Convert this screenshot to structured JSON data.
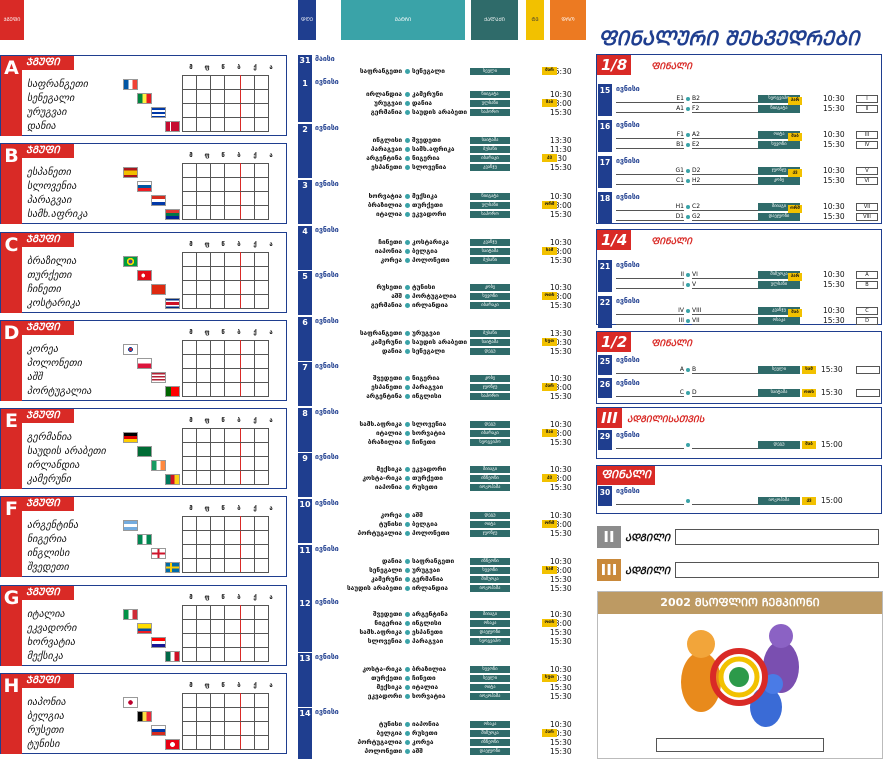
{
  "header": {
    "group_col": "ᲯᲒᲣᲤᲘ",
    "day_col": "ᲓᲦᲔ",
    "match_col": "ᲛᲐᲢᲩᲘ",
    "city_col": "ᲥᲐᲚᲐᲥᲘ",
    "tv_col": "ᲢᲕ",
    "time_col": "ᲓᲠᲝ"
  },
  "group_cols": [
    "მ",
    "ფ",
    "წ",
    "ბ",
    "ქ",
    "ა"
  ],
  "group_word": "ᲯᲒᲣᲤᲘ",
  "groups": [
    {
      "letter": "A",
      "teams": [
        "საფრანგეთი",
        "სენეგალი",
        "ურუგვაი",
        "დანია"
      ]
    },
    {
      "letter": "B",
      "teams": [
        "ესპანეთი",
        "სლოვენია",
        "პარაგვაი",
        "სამხ.აფრიკა"
      ]
    },
    {
      "letter": "C",
      "teams": [
        "ბრაზილია",
        "თურქეთი",
        "ჩინეთი",
        "კოსტარიკა"
      ]
    },
    {
      "letter": "D",
      "teams": [
        "კორეა",
        "პოლონეთი",
        "აშშ",
        "პორტუგალია"
      ]
    },
    {
      "letter": "E",
      "teams": [
        "გერმანია",
        "საუდის არაბეთი",
        "ირლანდია",
        "კამერუნი"
      ]
    },
    {
      "letter": "F",
      "teams": [
        "არგენტინა",
        "ნიგერია",
        "ინგლისი",
        "შვედეთი"
      ]
    },
    {
      "letter": "G",
      "teams": [
        "იტალია",
        "ეკვადორი",
        "ხორვატია",
        "მექსიკა"
      ]
    },
    {
      "letter": "H",
      "teams": [
        "იაპონია",
        "ბელგია",
        "რუსეთი",
        "ტუნისი"
      ]
    }
  ],
  "days": [
    {
      "num": "31",
      "month": "მაისი",
      "matches": [
        {
          "a": "საფრანგეთი",
          "b": "სენეგალი",
          "city": "სეული",
          "time": "15:30",
          "tv": "მარ"
        }
      ]
    },
    {
      "num": "1",
      "month": "ივნისი",
      "matches": [
        {
          "a": "ირლანდია",
          "b": "კამერუნი",
          "city": "ნიიგატა",
          "time": "10:30"
        },
        {
          "a": "ურუგვაი",
          "b": "დანია",
          "city": "ულსანი",
          "time": "13:00",
          "tv": "შაბ"
        },
        {
          "a": "გერმანია",
          "b": "საუდის არაბეთი",
          "city": "საპორო",
          "time": "15:30"
        }
      ]
    },
    {
      "num": "2",
      "month": "ივნისი",
      "matches": [
        {
          "a": "ინგლისი",
          "b": "შვედეთი",
          "city": "საიტამა",
          "time": "13:30"
        },
        {
          "a": "პარაგვაი",
          "b": "სამხ.აფრიკა",
          "city": "ბუსანი",
          "time": "11:30"
        },
        {
          "a": "არგენტინა",
          "b": "ნიგერია",
          "city": "იბარაკი",
          "time": "9:30",
          "tv": "კვ"
        },
        {
          "a": "ესპანეთი",
          "b": "სლოვენია",
          "city": "კვანჯუ",
          "time": "15:30"
        }
      ]
    },
    {
      "num": "3",
      "month": "ივნისი",
      "matches": [
        {
          "a": "ხორვატია",
          "b": "მექსიკა",
          "city": "ნიიგატა",
          "time": "10:30"
        },
        {
          "a": "ბრაზილია",
          "b": "თურქეთი",
          "city": "ულსანი",
          "time": "13:00",
          "tv": "ორშ"
        },
        {
          "a": "იტალია",
          "b": "ეკვადორი",
          "city": "საპორო",
          "time": "15:30"
        }
      ]
    },
    {
      "num": "4",
      "month": "ივნისი",
      "matches": [
        {
          "a": "ჩინეთი",
          "b": "კოსტარიკა",
          "city": "კვანჯუ",
          "time": "10:30"
        },
        {
          "a": "იაპონია",
          "b": "ბელგია",
          "city": "საიტამა",
          "time": "13:00",
          "tv": "სამ"
        },
        {
          "a": "კორეა",
          "b": "პოლონეთი",
          "city": "ბუსანი",
          "time": "15:30"
        }
      ]
    },
    {
      "num": "5",
      "month": "ივნისი",
      "matches": [
        {
          "a": "რუსეთი",
          "b": "ტუნისი",
          "city": "კობე",
          "time": "10:30"
        },
        {
          "a": "აშშ",
          "b": "პორტუგალია",
          "city": "სუვონი",
          "time": "13:00",
          "tv": "ოთხ"
        },
        {
          "a": "გერმანია",
          "b": "ირლანდია",
          "city": "იბარაკი",
          "time": "15:30"
        }
      ]
    },
    {
      "num": "6",
      "month": "ივნისი",
      "matches": [
        {
          "a": "საფრანგეთი",
          "b": "ურუგვაი",
          "city": "ბუსანი",
          "time": "13:30"
        },
        {
          "a": "კამერუნი",
          "b": "საუდის არაბეთი",
          "city": "საიტამა",
          "time": "10:30",
          "tv": "ხუთ"
        },
        {
          "a": "დანია",
          "b": "სენეგალი",
          "city": "დეგუ",
          "time": "15:30"
        }
      ]
    },
    {
      "num": "7",
      "month": "ივნისი",
      "matches": [
        {
          "a": "შვედეთი",
          "b": "ნიგერია",
          "city": "კობე",
          "time": "10:30"
        },
        {
          "a": "ესპანეთი",
          "b": "პარაგვაი",
          "city": "ჯეონჯუ",
          "time": "13:00",
          "tv": "პარ"
        },
        {
          "a": "არგენტინა",
          "b": "ინგლისი",
          "city": "საპორო",
          "time": "15:30"
        }
      ]
    },
    {
      "num": "8",
      "month": "ივნისი",
      "matches": [
        {
          "a": "სამხ.აფრიკა",
          "b": "სლოვენია",
          "city": "დეგუ",
          "time": "10:30"
        },
        {
          "a": "იტალია",
          "b": "ხორვატია",
          "city": "იბარაკი",
          "time": "13:00",
          "tv": "შაბ"
        },
        {
          "a": "ბრაზილია",
          "b": "ჩინეთი",
          "city": "სეოგვიპო",
          "time": "15:30"
        }
      ]
    },
    {
      "num": "9",
      "month": "ივნისი",
      "matches": [
        {
          "a": "მექსიკა",
          "b": "ეკვადორი",
          "city": "მიიაგი",
          "time": "10:30"
        },
        {
          "a": "კოსტა-რიკა",
          "b": "თურქეთი",
          "city": "ინჩეონი",
          "time": "13:00",
          "tv": "კვ"
        },
        {
          "a": "იაპონია",
          "b": "რუსეთი",
          "city": "იოკოჰამა",
          "time": "15:30"
        }
      ]
    },
    {
      "num": "10",
      "month": "ივნისი",
      "matches": [
        {
          "a": "კორეა",
          "b": "აშშ",
          "city": "დეგუ",
          "time": "10:30"
        },
        {
          "a": "ტუნისი",
          "b": "ბელგია",
          "city": "ოიტა",
          "time": "13:00",
          "tv": "ორშ"
        },
        {
          "a": "პორტუგალია",
          "b": "პოლონეთი",
          "city": "ჯეონჯუ",
          "time": "15:30"
        }
      ]
    },
    {
      "num": "11",
      "month": "ივნისი",
      "matches": [
        {
          "a": "დანია",
          "b": "საფრანგეთი",
          "city": "ინჩეონი",
          "time": "10:30"
        },
        {
          "a": "სენეგალი",
          "b": "ურუგვაი",
          "city": "სუვონი",
          "time": "13:00",
          "tv": "სამ"
        },
        {
          "a": "კამერუნი",
          "b": "გერმანია",
          "city": "შიზუოკა",
          "time": "15:30"
        },
        {
          "a": "საუდის არაბეთი",
          "b": "ირლანდია",
          "city": "იოკოჰამა",
          "time": "15:30"
        }
      ]
    },
    {
      "num": "12",
      "month": "ივნისი",
      "matches": [
        {
          "a": "შვედეთი",
          "b": "არგენტინა",
          "city": "მიიაგი",
          "time": "10:30"
        },
        {
          "a": "ნიგერია",
          "b": "ინგლისი",
          "city": "ოსაკა",
          "time": "13:00",
          "tv": "ოთხ"
        },
        {
          "a": "სამხ.აფრიკა",
          "b": "ესპანეთი",
          "city": "დაეჯეონი",
          "time": "15:30"
        },
        {
          "a": "სლოვენია",
          "b": "პარაგვაი",
          "city": "სეოგვიპო",
          "time": "15:30"
        }
      ]
    },
    {
      "num": "13",
      "month": "ივნისი",
      "matches": [
        {
          "a": "კოსტა-რიკა",
          "b": "ბრაზილია",
          "city": "სუვონი",
          "time": "10:30"
        },
        {
          "a": "თურქეთი",
          "b": "ჩინეთი",
          "city": "სეული",
          "time": "10:30",
          "tv": "ხუთ"
        },
        {
          "a": "მექსიკა",
          "b": "იტალია",
          "city": "ოიტა",
          "time": "15:30"
        },
        {
          "a": "ეკვადორი",
          "b": "ხორვატია",
          "city": "იოკოჰამა",
          "time": "15:30"
        }
      ]
    },
    {
      "num": "14",
      "month": "ივნისი",
      "matches": [
        {
          "a": "ტუნისი",
          "b": "იაპონია",
          "city": "ოსაკა",
          "time": "10:30"
        },
        {
          "a": "ბელგია",
          "b": "რუსეთი",
          "city": "შიზუოკა",
          "time": "10:30",
          "tv": "პარ"
        },
        {
          "a": "პორტუგალია",
          "b": "კორეა",
          "city": "ინჩეონი",
          "time": "15:30"
        },
        {
          "a": "პოლონეთი",
          "b": "აშშ",
          "city": "დაეჯეონი",
          "time": "15:30"
        }
      ]
    }
  ],
  "finals_title": "ᲤᲘᲜᲐᲚᲣᲠᲘ ᲨᲔᲮᲕᲔᲓᲠᲔᲑᲘ",
  "final_word": "ᲤᲘᲜᲐᲚᲘ",
  "round16": {
    "label": "1/8",
    "matches": [
      {
        "num": "15",
        "month": "ივნისი",
        "l1": [
          "E1",
          "B2"
        ],
        "l2": [
          "A1",
          "F2"
        ],
        "c1": "სეოგვიპო",
        "c2": "ნიიგატა",
        "t1": "10:30",
        "t2": "15:30",
        "tv": "პარ",
        "b1": "I",
        "b2": "II"
      },
      {
        "num": "16",
        "month": "ივნისი",
        "l1": [
          "F1",
          "A2"
        ],
        "l2": [
          "B1",
          "E2"
        ],
        "c1": "ოიტა",
        "c2": "სუვონი",
        "t1": "10:30",
        "t2": "15:30",
        "tv": "შაბ",
        "b1": "III",
        "b2": "IV"
      },
      {
        "num": "17",
        "month": "ივნისი",
        "l1": [
          "G1",
          "D2"
        ],
        "l2": [
          "C1",
          "H2"
        ],
        "c1": "ჯეონჯუ",
        "c2": "კობე",
        "t1": "10:30",
        "t2": "15:30",
        "tv": "კვ",
        "b1": "V",
        "b2": "VI"
      },
      {
        "num": "18",
        "month": "ივნისი",
        "l1": [
          "H1",
          "C2"
        ],
        "l2": [
          "D1",
          "G2"
        ],
        "c1": "მიიაგი",
        "c2": "დაეჯეონი",
        "t1": "10:30",
        "t2": "15:30",
        "tv": "ორშ",
        "b1": "VII",
        "b2": "VIII"
      }
    ]
  },
  "quarter": {
    "label": "1/4",
    "matches": [
      {
        "num": "21",
        "month": "ივნისი",
        "l1": [
          "II",
          "VI"
        ],
        "l2": [
          "I",
          "V"
        ],
        "c1": "შიზუოკა",
        "c2": "ულსანი",
        "t1": "10:30",
        "t2": "15:30",
        "tv": "პარ",
        "b1": "A",
        "b2": "B"
      },
      {
        "num": "22",
        "month": "ივნისი",
        "l1": [
          "IV",
          "VIII"
        ],
        "l2": [
          "III",
          "VII"
        ],
        "c1": "კვანჯუ",
        "c2": "ოსაკა",
        "t1": "10:30",
        "t2": "15:30",
        "tv": "შაბ",
        "b1": "C",
        "b2": "D"
      }
    ]
  },
  "semi": {
    "label": "1/2",
    "matches": [
      {
        "num": "25",
        "month": "ივნისი",
        "a": "A",
        "b": "B",
        "city": "სეული",
        "tv": "სამ",
        "time": "15:30"
      },
      {
        "num": "26",
        "month": "ივნისი",
        "a": "C",
        "b": "D",
        "city": "საიტამა",
        "tv": "ოთხ",
        "time": "15:30"
      }
    ]
  },
  "third": {
    "label": "III",
    "name": "ᲐᲓᲒᲘᲚᲘᲡᲐᲗᲕᲘᲡ",
    "num": "29",
    "month": "ივნისი",
    "city": "დეგუ",
    "tv": "შაბ",
    "time": "15:00"
  },
  "final": {
    "name": "ᲤᲘᲜᲐᲚᲘ",
    "num": "30",
    "month": "ივნისი",
    "city": "იოკოჰამა",
    "tv": "კვ",
    "time": "15:00"
  },
  "places": [
    {
      "n": "II",
      "label": "ᲐᲓᲒᲘᲚᲘ",
      "color": "#8c8c8c"
    },
    {
      "n": "III",
      "label": "ᲐᲓᲒᲘᲚᲘ",
      "color": "#c9893a"
    }
  ],
  "champion": {
    "title": "2002 ᲛᲡᲝᲤᲚᲘᲝ ᲩᲔᲛᲞᲘᲝᲜᲘ"
  }
}
